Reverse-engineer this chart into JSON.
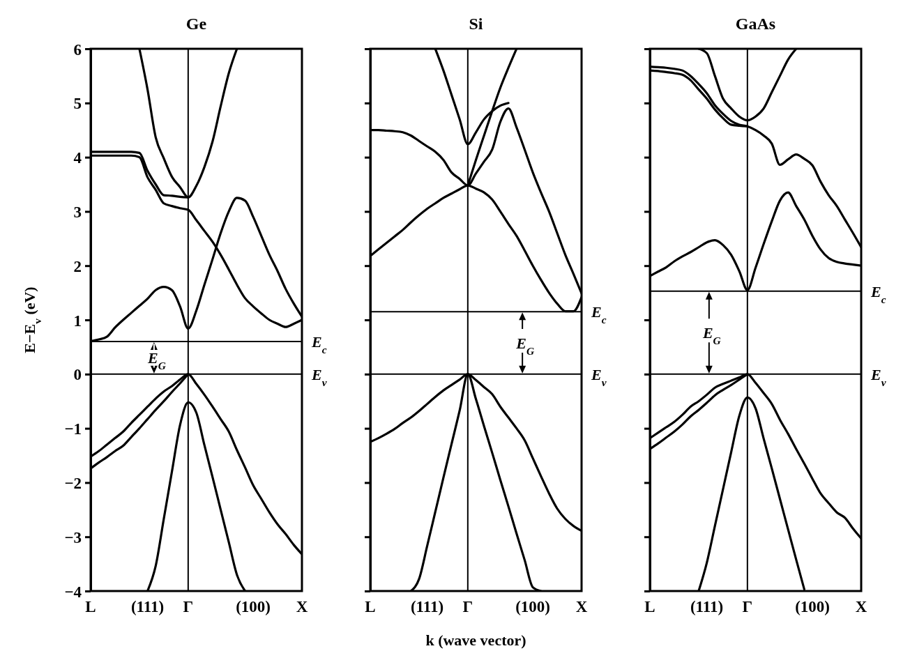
{
  "chart_data": [
    {
      "type": "line",
      "title": "Ge",
      "ylabel": "E−E$_{v}$ (eV)",
      "ylim": [
        -4,
        6
      ],
      "yticks": [
        -4,
        -3,
        -2,
        -1,
        0,
        1,
        2,
        3,
        4,
        5,
        6
      ],
      "categories": [
        "L",
        null,
        null,
        null,
        null,
        null,
        null,
        "(111)",
        null,
        null,
        null,
        null,
        "Γ",
        null,
        null,
        null,
        null,
        null,
        null,
        null,
        "(100)",
        null,
        null,
        null,
        null,
        null,
        "X"
      ],
      "series": [
        {
          "color": "#000000",
          "values": [
            null,
            null,
            null,
            null,
            null,
            null,
            6,
            5.25,
            4.37,
            3.98,
            3.64,
            3.45,
            3.26,
            3.47,
            3.82,
            4.29,
            4.94,
            5.55,
            6,
            null,
            null,
            null,
            null,
            null,
            null,
            null,
            null
          ]
        },
        {
          "color": "#000000",
          "values": [
            4.1,
            4.1,
            4.1,
            4.1,
            4.1,
            4.1,
            4.08,
            3.75,
            3.5,
            3.3,
            3.29,
            3.27,
            3.26,
            null,
            null,
            null,
            null,
            null,
            null,
            null,
            null,
            null,
            null,
            null,
            null,
            null,
            null
          ]
        },
        {
          "color": "#000000",
          "values": [
            4.03,
            4.03,
            4.03,
            4.03,
            4.03,
            4.03,
            4.0,
            3.63,
            3.4,
            3.15,
            3.1,
            3.06,
            3.03,
            2.84,
            2.64,
            2.44,
            2.2,
            1.93,
            1.65,
            1.4,
            1.25,
            1.12,
            1.0,
            0.93,
            0.87,
            0.93,
            1.0
          ]
        },
        {
          "color": "#000000",
          "values": [
            0.61,
            0.64,
            0.69,
            0.86,
            1.0,
            1.13,
            1.26,
            1.39,
            1.55,
            1.61,
            1.55,
            1.25,
            0.84,
            1.17,
            1.65,
            2.12,
            2.6,
            3.0,
            3.25,
            3.2,
            2.9,
            2.55,
            2.2,
            1.9,
            1.57,
            1.3,
            1.06
          ]
        },
        {
          "color": "#000000",
          "values": [
            -1.52,
            -1.42,
            -1.3,
            -1.18,
            -1.06,
            -0.9,
            -0.75,
            -0.6,
            -0.45,
            -0.32,
            -0.22,
            -0.1,
            0,
            -0.18,
            -0.38,
            -0.6,
            -0.83,
            -1.06,
            -1.4,
            -1.72,
            -2.05,
            -2.3,
            -2.55,
            -2.77,
            -2.95,
            -3.15,
            -3.32
          ]
        },
        {
          "color": "#000000",
          "values": [
            -1.74,
            -1.63,
            -1.53,
            -1.42,
            -1.32,
            -1.16,
            -1.0,
            -0.83,
            -0.66,
            -0.5,
            -0.33,
            -0.17,
            0,
            null,
            null,
            null,
            null,
            null,
            null,
            null,
            null,
            null,
            null,
            null,
            null,
            null,
            null
          ]
        },
        {
          "color": "#000000",
          "values": [
            null,
            null,
            null,
            null,
            null,
            null,
            null,
            -4,
            -3.54,
            -2.67,
            -1.8,
            -0.94,
            -0.52,
            -0.71,
            -1.31,
            -1.9,
            -2.5,
            -3.1,
            -3.7,
            -4,
            null,
            null,
            null,
            null,
            null,
            null,
            null
          ]
        }
      ],
      "ref_lines": [
        {
          "axis": "x",
          "value": "Γ"
        },
        {
          "axis": "y",
          "value": 0,
          "label": "E$_{v}$"
        },
        {
          "axis": "y",
          "value": 0.6,
          "label": "E$_{c}$"
        }
      ],
      "annotations": [
        "E$_{G}$"
      ]
    },
    {
      "type": "line",
      "title": "Si",
      "xlabel": "k (wave vector)",
      "tick_labels": "x",
      "ylim": [
        -4,
        6
      ],
      "yticks": [
        -4,
        -3,
        -2,
        -1,
        0,
        1,
        2,
        3,
        4,
        5,
        6
      ],
      "categories": [
        "L",
        null,
        null,
        null,
        null,
        null,
        null,
        "(111)",
        null,
        null,
        null,
        null,
        "Γ",
        null,
        null,
        null,
        null,
        null,
        null,
        null,
        "(100)",
        null,
        null,
        null,
        null,
        null,
        "X"
      ],
      "series": [
        {
          "color": "#000000",
          "values": [
            2.18,
            2.3,
            2.42,
            2.54,
            2.66,
            2.8,
            2.93,
            3.05,
            3.15,
            3.25,
            3.33,
            3.41,
            3.48,
            3.42,
            3.35,
            3.22,
            3.0,
            2.77,
            2.55,
            2.28,
            2.0,
            1.74,
            1.5,
            1.3,
            1.16,
            1.16,
            1.42
          ]
        },
        {
          "color": "#000000",
          "values": [
            4.5,
            4.5,
            4.49,
            4.48,
            4.46,
            4.4,
            4.3,
            4.2,
            4.1,
            3.95,
            3.72,
            3.6,
            3.48,
            3.7,
            3.92,
            4.14,
            4.65,
            4.9,
            4.55,
            4.14,
            3.72,
            3.35,
            3.0,
            2.6,
            2.2,
            1.85,
            1.49
          ]
        },
        {
          "color": "#000000",
          "values": [
            null,
            null,
            null,
            null,
            null,
            null,
            null,
            null,
            6,
            5.6,
            5.15,
            4.7,
            4.24,
            4.46,
            4.7,
            4.85,
            4.95,
            5.0,
            null,
            null,
            null,
            null,
            null,
            null,
            null,
            null,
            null
          ]
        },
        {
          "color": "#000000",
          "values": [
            null,
            null,
            null,
            null,
            null,
            null,
            null,
            null,
            null,
            null,
            null,
            null,
            3.48,
            3.95,
            4.4,
            4.85,
            5.28,
            5.65,
            6,
            null,
            null,
            null,
            null,
            null,
            null,
            null,
            null
          ]
        },
        {
          "color": "#000000",
          "values": [
            -1.25,
            -1.18,
            -1.1,
            -1.01,
            -0.9,
            -0.8,
            -0.68,
            -0.55,
            -0.42,
            -0.3,
            -0.2,
            -0.1,
            0,
            -0.11,
            -0.24,
            -0.37,
            -0.6,
            -0.8,
            -1.0,
            -1.22,
            -1.55,
            -1.88,
            -2.2,
            -2.48,
            -2.67,
            -2.8,
            -2.89
          ]
        },
        {
          "color": "#000000",
          "values": [
            null,
            null,
            null,
            null,
            null,
            -4,
            -3.78,
            -3.17,
            -2.54,
            -1.91,
            -1.29,
            -0.67,
            0,
            -0.46,
            -0.96,
            -1.45,
            -1.95,
            -2.44,
            -2.94,
            -3.43,
            -3.93,
            -4,
            null,
            null,
            null,
            null,
            null
          ]
        }
      ],
      "ref_lines": [
        {
          "axis": "x",
          "value": "Γ"
        },
        {
          "axis": "y",
          "value": 0,
          "label": "E$_{v}$"
        },
        {
          "axis": "y",
          "value": 1.15,
          "label": "E$_{c}$"
        }
      ],
      "annotations": [
        "E$_{G}$"
      ]
    },
    {
      "type": "line",
      "title": "GaAs",
      "tick_labels": "x",
      "ylim": [
        -4,
        6
      ],
      "yticks": [
        -4,
        -3,
        -2,
        -1,
        0,
        1,
        2,
        3,
        4,
        5,
        6
      ],
      "categories": [
        "L",
        null,
        null,
        null,
        null,
        null,
        null,
        "(111)",
        null,
        null,
        null,
        null,
        "Γ",
        null,
        null,
        null,
        null,
        null,
        null,
        null,
        "(100)",
        null,
        null,
        null,
        null,
        null,
        "X"
      ],
      "series": [
        {
          "color": "#000000",
          "values": [
            1.81,
            1.89,
            1.97,
            2.08,
            2.17,
            2.25,
            2.34,
            2.43,
            2.47,
            2.38,
            2.2,
            1.9,
            1.55,
            1.96,
            2.4,
            2.82,
            3.2,
            3.35,
            3.1,
            2.85,
            2.55,
            2.3,
            2.14,
            2.07,
            2.04,
            2.02,
            2.0
          ]
        },
        {
          "color": "#000000",
          "values": [
            5.67,
            5.66,
            5.65,
            5.63,
            5.6,
            5.5,
            5.35,
            5.18,
            4.96,
            4.8,
            4.67,
            4.6,
            4.57,
            4.5,
            4.4,
            4.25,
            3.86,
            3.96,
            4.05,
            3.97,
            3.85,
            3.55,
            3.3,
            3.1,
            2.85,
            2.6,
            2.34
          ]
        },
        {
          "color": "#000000",
          "values": [
            5.6,
            5.59,
            5.57,
            5.55,
            5.52,
            5.42,
            5.25,
            5.08,
            4.88,
            4.72,
            4.6,
            4.58,
            4.57,
            null,
            null,
            null,
            null,
            null,
            null,
            null,
            null,
            null,
            null,
            null,
            null,
            null,
            null
          ]
        },
        {
          "color": "#000000",
          "values": [
            null,
            null,
            null,
            null,
            null,
            null,
            6,
            5.92,
            5.5,
            5.08,
            4.9,
            4.75,
            4.68,
            4.75,
            4.9,
            5.2,
            5.5,
            5.8,
            6,
            null,
            null,
            null,
            null,
            null,
            null,
            null,
            null
          ]
        },
        {
          "color": "#000000",
          "values": [
            -1.18,
            -1.08,
            -0.98,
            -0.88,
            -0.75,
            -0.6,
            -0.5,
            -0.38,
            -0.25,
            -0.18,
            -0.12,
            -0.06,
            0,
            -0.16,
            -0.35,
            -0.55,
            -0.84,
            -1.1,
            -1.38,
            -1.65,
            -1.93,
            -2.2,
            -2.38,
            -2.55,
            -2.65,
            -2.85,
            -3.03
          ]
        },
        {
          "color": "#000000",
          "values": [
            -1.38,
            -1.28,
            -1.17,
            -1.06,
            -0.93,
            -0.78,
            -0.66,
            -0.53,
            -0.39,
            -0.29,
            -0.2,
            -0.1,
            0,
            null,
            null,
            null,
            null,
            null,
            null,
            null,
            null,
            null,
            null,
            null,
            null,
            null,
            null
          ]
        },
        {
          "color": "#000000",
          "values": [
            null,
            null,
            null,
            null,
            null,
            null,
            -4,
            -3.48,
            -2.8,
            -2.12,
            -1.44,
            -0.77,
            -0.43,
            -0.63,
            -1.19,
            -1.74,
            -2.3,
            -2.86,
            -3.42,
            -3.97,
            null,
            null,
            null,
            null,
            null,
            null,
            null
          ]
        }
      ],
      "ref_lines": [
        {
          "axis": "x",
          "value": "Γ"
        },
        {
          "axis": "y",
          "value": 0,
          "label": "E$_{v}$"
        },
        {
          "axis": "y",
          "value": 1.53,
          "label": "E$_{c}$"
        }
      ],
      "annotations": [
        "E$_{G}$"
      ]
    }
  ]
}
